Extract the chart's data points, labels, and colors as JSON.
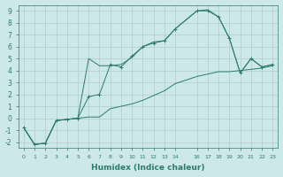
{
  "xlabel": "Humidex (Indice chaleur)",
  "bg_color": "#cde8e8",
  "grid_color": "#b0cccc",
  "line_color": "#2d7a6e",
  "xlim": [
    -0.5,
    23.5
  ],
  "ylim": [
    -2.5,
    9.5
  ],
  "yticks": [
    -2,
    -1,
    0,
    1,
    2,
    3,
    4,
    5,
    6,
    7,
    8,
    9
  ],
  "line1_x": [
    0,
    1,
    2,
    3,
    4,
    5,
    6,
    7,
    8,
    9,
    10,
    11,
    12,
    13,
    14,
    16,
    17,
    18,
    19,
    20,
    21,
    22,
    23
  ],
  "line1_y": [
    -0.8,
    -2.2,
    -2.1,
    -0.2,
    -0.1,
    -0.0,
    0.1,
    0.1,
    0.8,
    1.0,
    1.2,
    1.5,
    1.9,
    2.3,
    2.9,
    3.5,
    3.7,
    3.9,
    3.9,
    4.0,
    4.1,
    4.2,
    4.4
  ],
  "line2_x": [
    0,
    1,
    2,
    3,
    4,
    5,
    6,
    7,
    8,
    9,
    10,
    11,
    12,
    13,
    14,
    16,
    17,
    18,
    19,
    20,
    21,
    22,
    23
  ],
  "line2_y": [
    -0.8,
    -2.2,
    -2.1,
    -0.2,
    -0.1,
    0.0,
    5.0,
    4.4,
    4.4,
    4.5,
    5.1,
    6.0,
    6.4,
    6.5,
    7.5,
    9.0,
    9.1,
    8.5,
    6.7,
    3.8,
    5.0,
    4.3,
    4.5
  ],
  "line3_x": [
    0,
    1,
    2,
    3,
    4,
    5,
    6,
    7,
    8,
    9,
    10,
    11,
    12,
    13,
    14,
    16,
    17,
    18,
    19,
    20,
    21,
    22,
    23
  ],
  "line3_y": [
    -0.8,
    -2.2,
    -2.1,
    -0.2,
    -0.1,
    0.0,
    1.8,
    2.0,
    4.5,
    4.3,
    5.2,
    6.0,
    6.3,
    6.5,
    7.5,
    9.0,
    9.0,
    8.5,
    6.7,
    3.8,
    5.0,
    4.3,
    4.5
  ]
}
